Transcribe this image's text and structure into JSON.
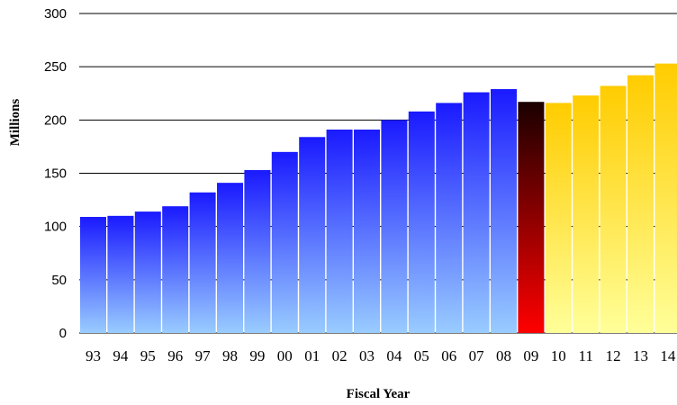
{
  "chart_data": {
    "type": "bar",
    "xlabel": "Fiscal Year",
    "ylabel": "Millions",
    "ylim": [
      0,
      300
    ],
    "yticks": [
      "0",
      "50",
      "100",
      "150",
      "200",
      "250",
      "300"
    ],
    "grid": true,
    "categories": [
      "93",
      "94",
      "95",
      "96",
      "97",
      "98",
      "99",
      "00",
      "01",
      "02",
      "03",
      "04",
      "05",
      "06",
      "07",
      "08",
      "09",
      "10",
      "11",
      "12",
      "13",
      "14"
    ],
    "values": [
      109,
      110,
      114,
      119,
      132,
      141,
      153,
      170,
      184,
      191,
      191,
      200,
      208,
      216,
      226,
      229,
      217,
      216,
      223,
      232,
      242,
      253
    ],
    "bar_groups": [
      "actual",
      "actual",
      "actual",
      "actual",
      "actual",
      "actual",
      "actual",
      "actual",
      "actual",
      "actual",
      "actual",
      "actual",
      "actual",
      "actual",
      "actual",
      "actual",
      "current",
      "projected",
      "projected",
      "projected",
      "projected",
      "projected"
    ],
    "colors": {
      "actual_top": "#1a1aff",
      "actual_bottom": "#99ccff",
      "current_top": "#1a0000",
      "current_bottom": "#ff0000",
      "projected_top": "#ffcc00",
      "projected_bottom": "#ffff99"
    }
  }
}
